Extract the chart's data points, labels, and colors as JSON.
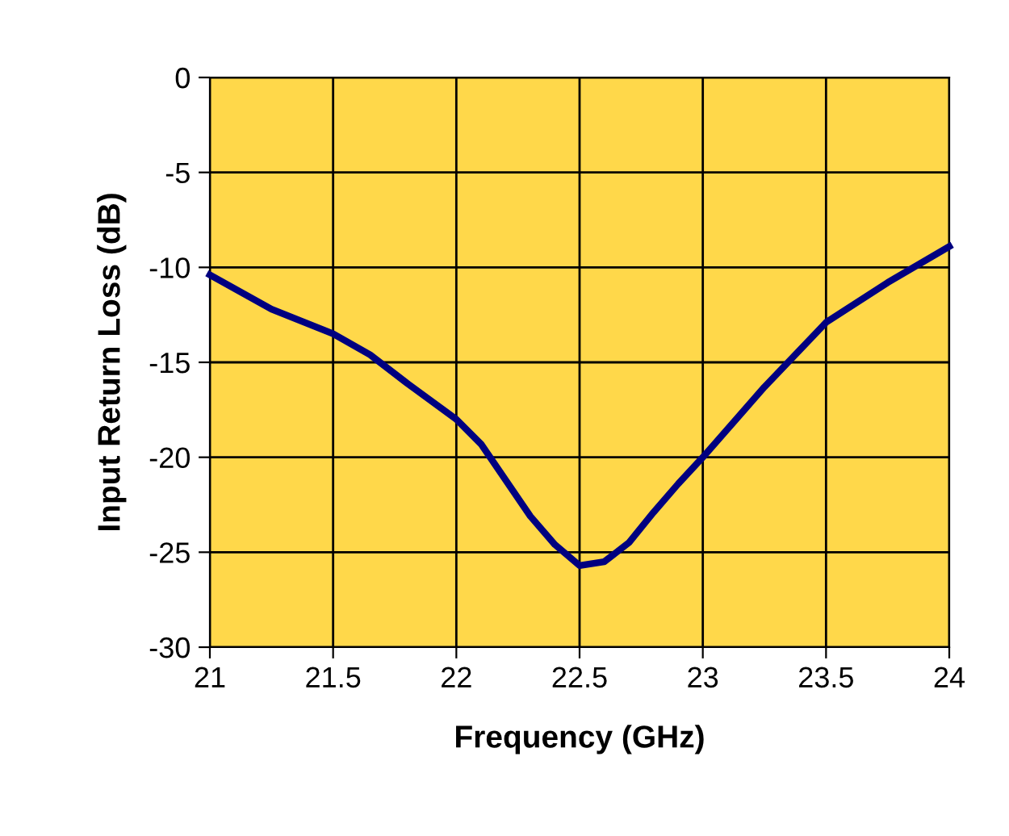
{
  "chart_data": {
    "type": "line",
    "xlabel": "Frequency (GHz)",
    "ylabel": "Input Return Loss (dB)",
    "x": [
      21.0,
      21.25,
      21.5,
      21.65,
      21.8,
      22.0,
      22.1,
      22.2,
      22.3,
      22.4,
      22.5,
      22.6,
      22.7,
      22.8,
      22.9,
      23.0,
      23.25,
      23.5,
      23.75,
      24.0
    ],
    "series": [
      {
        "color": "#000080",
        "values": [
          -10.4,
          -12.2,
          -13.5,
          -14.6,
          -16.1,
          -18.0,
          -19.3,
          -21.2,
          -23.1,
          -24.6,
          -25.7,
          -25.5,
          -24.5,
          -22.9,
          -21.4,
          -20.0,
          -16.3,
          -12.9,
          -10.8,
          -8.9
        ]
      }
    ],
    "xlim": [
      21,
      24
    ],
    "xticks": [
      21,
      21.5,
      22,
      22.5,
      23,
      23.5,
      24
    ],
    "ylim": [
      -30,
      0
    ],
    "yticks": [
      -30,
      -25,
      -20,
      -15,
      -10,
      -5,
      0
    ],
    "grid": true,
    "legend": false,
    "marker": "none",
    "line_style": "solid"
  }
}
